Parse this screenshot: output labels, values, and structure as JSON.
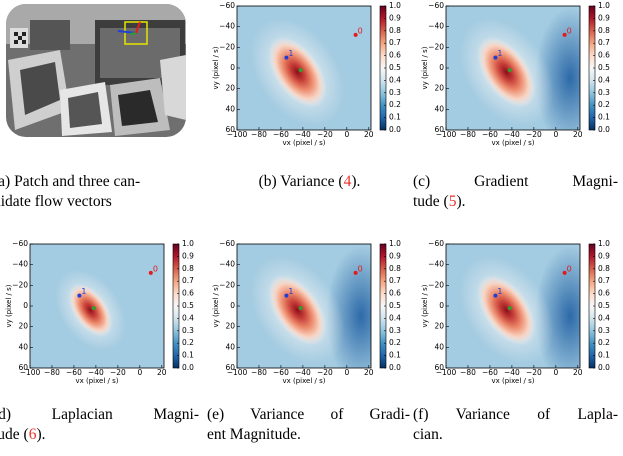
{
  "figure": {
    "captions": [
      [
        [
          "(a) Patch and three can-"
        ],
        [
          "didate flow vectors"
        ]
      ],
      [
        [
          "(b) Variance (",
          {
            "text": "4",
            "color": "#e8322a"
          },
          ")."
        ]
      ],
      [
        [
          "(c) Gradient Magni-"
        ],
        [
          "tude (",
          {
            "text": "5",
            "color": "#e8322a"
          },
          ")."
        ]
      ],
      [
        [
          "(d) Laplacian Magni-"
        ],
        [
          "tude (",
          {
            "text": "6",
            "color": "#e8322a"
          },
          ")."
        ]
      ],
      [
        [
          "(e) Variance of Gradi-"
        ],
        [
          "ent Magnitude."
        ]
      ],
      [
        [
          "(f) Variance of Lapla-"
        ],
        [
          "cian."
        ]
      ]
    ]
  },
  "chart_data": [
    {
      "type": "heatmap",
      "xlabel": "vx (pixel / s)",
      "ylabel": "vy (pixel / s)",
      "xlim": [
        -100,
        22
      ],
      "ylim": [
        60,
        -60
      ],
      "xticks": [
        {
          "value": -100,
          "label": "−100"
        },
        {
          "value": -80,
          "label": "−80"
        },
        {
          "value": -60,
          "label": "−60"
        },
        {
          "value": -40,
          "label": "−40"
        },
        {
          "value": -20,
          "label": "−20"
        },
        0,
        20
      ],
      "yticks": [
        {
          "value": -60,
          "label": "−60"
        },
        {
          "value": -40,
          "label": "−40"
        },
        {
          "value": -20,
          "label": "−20"
        },
        0,
        20,
        40,
        60
      ],
      "colormap": [
        "#053061",
        "#2166ac",
        "#4393c3",
        "#92c5de",
        "#d1e5f0",
        "#f7f7f7",
        "#fddbc7",
        "#f4a582",
        "#d6604d",
        "#b2182b",
        "#67001f"
      ],
      "clim": [
        0,
        1
      ],
      "cticks": [
        {
          "value": 0,
          "label": "0.0"
        },
        {
          "value": 0.1,
          "label": "0.1"
        },
        {
          "value": 0.2,
          "label": "0.2"
        },
        {
          "value": 0.3,
          "label": "0.3"
        },
        {
          "value": 0.4,
          "label": "0.4"
        },
        {
          "value": 0.5,
          "label": "0.5"
        },
        {
          "value": 0.6,
          "label": "0.6"
        },
        {
          "value": 0.7,
          "label": "0.7"
        },
        {
          "value": 0.8,
          "label": "0.8"
        },
        {
          "value": 0.9,
          "label": "0.9"
        },
        {
          "value": 1,
          "label": "1.0"
        }
      ],
      "points": [
        {
          "label": "0",
          "x": 8,
          "y": -32,
          "color": "#e41a1c"
        },
        {
          "label": "1",
          "x": -55,
          "y": -10,
          "color": "#1f3fd6"
        },
        {
          "x": -42,
          "y": 2,
          "color": "#2ca02c"
        }
      ]
    },
    {
      "type": "heatmap",
      "xlabel": "vx (pixel / s)",
      "ylabel": "vy (pixel / s)",
      "xlim": [
        -100,
        22
      ],
      "ylim": [
        60,
        -60
      ],
      "xticks": [
        {
          "value": -100,
          "label": "−100"
        },
        {
          "value": -80,
          "label": "−80"
        },
        {
          "value": -60,
          "label": "−60"
        },
        {
          "value": -40,
          "label": "−40"
        },
        {
          "value": -20,
          "label": "−20"
        },
        0,
        20
      ],
      "yticks": [
        {
          "value": -60,
          "label": "−60"
        },
        {
          "value": -40,
          "label": "−40"
        },
        {
          "value": -20,
          "label": "−20"
        },
        0,
        20,
        40,
        60
      ],
      "colormap": [
        "#053061",
        "#2166ac",
        "#4393c3",
        "#92c5de",
        "#d1e5f0",
        "#f7f7f7",
        "#fddbc7",
        "#f4a582",
        "#d6604d",
        "#b2182b",
        "#67001f"
      ],
      "clim": [
        0,
        1
      ],
      "cticks": [
        {
          "value": 0,
          "label": "0.0"
        },
        {
          "value": 0.1,
          "label": "0.1"
        },
        {
          "value": 0.2,
          "label": "0.2"
        },
        {
          "value": 0.3,
          "label": "0.3"
        },
        {
          "value": 0.4,
          "label": "0.4"
        },
        {
          "value": 0.5,
          "label": "0.5"
        },
        {
          "value": 0.6,
          "label": "0.6"
        },
        {
          "value": 0.7,
          "label": "0.7"
        },
        {
          "value": 0.8,
          "label": "0.8"
        },
        {
          "value": 0.9,
          "label": "0.9"
        },
        {
          "value": 1,
          "label": "1.0"
        }
      ],
      "points": [
        {
          "label": "0",
          "x": 8,
          "y": -32,
          "color": "#e41a1c"
        },
        {
          "label": "1",
          "x": -55,
          "y": -10,
          "color": "#1f3fd6"
        },
        {
          "x": -42,
          "y": 2,
          "color": "#2ca02c"
        }
      ]
    },
    {
      "type": "heatmap",
      "xlabel": "vx (pixel / s)",
      "ylabel": "vy (pixel / s)",
      "xlim": [
        -100,
        22
      ],
      "ylim": [
        60,
        -60
      ],
      "xticks": [
        {
          "value": -100,
          "label": "−100"
        },
        {
          "value": -80,
          "label": "−80"
        },
        {
          "value": -60,
          "label": "−60"
        },
        {
          "value": -40,
          "label": "−40"
        },
        {
          "value": -20,
          "label": "−20"
        },
        0,
        20
      ],
      "yticks": [
        {
          "value": -60,
          "label": "−60"
        },
        {
          "value": -40,
          "label": "−40"
        },
        {
          "value": -20,
          "label": "−20"
        },
        0,
        20,
        40,
        60
      ],
      "colormap": [
        "#053061",
        "#2166ac",
        "#4393c3",
        "#92c5de",
        "#d1e5f0",
        "#f7f7f7",
        "#fddbc7",
        "#f4a582",
        "#d6604d",
        "#b2182b",
        "#67001f"
      ],
      "clim": [
        0,
        1
      ],
      "cticks": [
        {
          "value": 0,
          "label": "0.0"
        },
        {
          "value": 0.1,
          "label": "0.1"
        },
        {
          "value": 0.2,
          "label": "0.2"
        },
        {
          "value": 0.3,
          "label": "0.3"
        },
        {
          "value": 0.4,
          "label": "0.4"
        },
        {
          "value": 0.5,
          "label": "0.5"
        },
        {
          "value": 0.6,
          "label": "0.6"
        },
        {
          "value": 0.7,
          "label": "0.7"
        },
        {
          "value": 0.8,
          "label": "0.8"
        },
        {
          "value": 0.9,
          "label": "0.9"
        },
        {
          "value": 1,
          "label": "1.0"
        }
      ],
      "points": [
        {
          "label": "0",
          "x": 10,
          "y": -32,
          "color": "#e41a1c"
        },
        {
          "label": "1",
          "x": -55,
          "y": -10,
          "color": "#1f3fd6"
        },
        {
          "x": -42,
          "y": 2,
          "color": "#2ca02c"
        }
      ]
    },
    {
      "type": "heatmap",
      "xlabel": "vx (pixel / s)",
      "ylabel": "vy (pixel / s)",
      "xlim": [
        -100,
        22
      ],
      "ylim": [
        60,
        -60
      ],
      "xticks": [
        {
          "value": -100,
          "label": "−100"
        },
        {
          "value": -80,
          "label": "−80"
        },
        {
          "value": -60,
          "label": "−60"
        },
        {
          "value": -40,
          "label": "−40"
        },
        {
          "value": -20,
          "label": "−20"
        },
        0,
        20
      ],
      "yticks": [
        {
          "value": -60,
          "label": "−60"
        },
        {
          "value": -40,
          "label": "−40"
        },
        {
          "value": -20,
          "label": "−20"
        },
        0,
        20,
        40,
        60
      ],
      "colormap": [
        "#053061",
        "#2166ac",
        "#4393c3",
        "#92c5de",
        "#d1e5f0",
        "#f7f7f7",
        "#fddbc7",
        "#f4a582",
        "#d6604d",
        "#b2182b",
        "#67001f"
      ],
      "clim": [
        0,
        1
      ],
      "cticks": [
        {
          "value": 0,
          "label": "0.0"
        },
        {
          "value": 0.1,
          "label": "0.1"
        },
        {
          "value": 0.2,
          "label": "0.2"
        },
        {
          "value": 0.3,
          "label": "0.3"
        },
        {
          "value": 0.4,
          "label": "0.4"
        },
        {
          "value": 0.5,
          "label": "0.5"
        },
        {
          "value": 0.6,
          "label": "0.6"
        },
        {
          "value": 0.7,
          "label": "0.7"
        },
        {
          "value": 0.8,
          "label": "0.8"
        },
        {
          "value": 0.9,
          "label": "0.9"
        },
        {
          "value": 1,
          "label": "1.0"
        }
      ],
      "points": [
        {
          "label": "0",
          "x": 8,
          "y": -32,
          "color": "#e41a1c"
        },
        {
          "label": "1",
          "x": -55,
          "y": -10,
          "color": "#1f3fd6"
        },
        {
          "x": -42,
          "y": 2,
          "color": "#2ca02c"
        }
      ]
    },
    {
      "type": "heatmap",
      "xlabel": "vx (pixel / s)",
      "ylabel": "vy (pixel / s)",
      "xlim": [
        -100,
        22
      ],
      "ylim": [
        60,
        -60
      ],
      "xticks": [
        {
          "value": -100,
          "label": "−100"
        },
        {
          "value": -80,
          "label": "−80"
        },
        {
          "value": -60,
          "label": "−60"
        },
        {
          "value": -40,
          "label": "−40"
        },
        {
          "value": -20,
          "label": "−20"
        },
        0,
        20
      ],
      "yticks": [
        {
          "value": -60,
          "label": "−60"
        },
        {
          "value": -40,
          "label": "−40"
        },
        {
          "value": -20,
          "label": "−20"
        },
        0,
        20,
        40,
        60
      ],
      "colormap": [
        "#053061",
        "#2166ac",
        "#4393c3",
        "#92c5de",
        "#d1e5f0",
        "#f7f7f7",
        "#fddbc7",
        "#f4a582",
        "#d6604d",
        "#b2182b",
        "#67001f"
      ],
      "clim": [
        0,
        1
      ],
      "cticks": [
        {
          "value": 0,
          "label": "0.0"
        },
        {
          "value": 0.1,
          "label": "0.1"
        },
        {
          "value": 0.2,
          "label": "0.2"
        },
        {
          "value": 0.3,
          "label": "0.3"
        },
        {
          "value": 0.4,
          "label": "0.4"
        },
        {
          "value": 0.5,
          "label": "0.5"
        },
        {
          "value": 0.6,
          "label": "0.6"
        },
        {
          "value": 0.7,
          "label": "0.7"
        },
        {
          "value": 0.8,
          "label": "0.8"
        },
        {
          "value": 0.9,
          "label": "0.9"
        },
        {
          "value": 1,
          "label": "1.0"
        }
      ],
      "points": [
        {
          "label": "0",
          "x": 8,
          "y": -32,
          "color": "#e41a1c"
        },
        {
          "label": "1",
          "x": -55,
          "y": -10,
          "color": "#1f3fd6"
        },
        {
          "x": -42,
          "y": 2,
          "color": "#2ca02c"
        }
      ]
    }
  ]
}
